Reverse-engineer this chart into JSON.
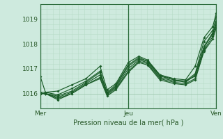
{
  "title": "",
  "xlabel": "Pression niveau de la mer( hPa )",
  "bg_color": "#ceeade",
  "line_color": "#1a5c28",
  "grid_major_color": "#a0c8b0",
  "grid_minor_color": "#b8dcc8",
  "axis_color": "#2a6b3a",
  "text_color": "#2a5a2a",
  "ylim": [
    1015.4,
    1019.6
  ],
  "yticks": [
    1016,
    1017,
    1018,
    1019
  ],
  "xlim": [
    0.0,
    2.0
  ],
  "x_labels": [
    0.0,
    1.0,
    2.0
  ],
  "x_label_names": [
    "Mer",
    "Jeu",
    "Ven"
  ],
  "series": [
    [
      0.0,
      1016.7,
      0.06,
      1016.05,
      0.2,
      1016.1,
      0.36,
      1016.35,
      0.52,
      1016.6,
      0.68,
      1017.1,
      0.76,
      1016.15,
      0.86,
      1016.4,
      1.0,
      1017.25,
      1.12,
      1017.5,
      1.22,
      1017.35,
      1.36,
      1016.75,
      1.52,
      1016.6,
      1.65,
      1016.55,
      1.76,
      1017.1,
      1.86,
      1018.25,
      1.96,
      1018.7,
      2.0,
      1019.25
    ],
    [
      0.0,
      1016.05,
      0.06,
      1016.05,
      0.2,
      1015.95,
      0.36,
      1016.2,
      0.52,
      1016.5,
      0.68,
      1016.9,
      0.76,
      1016.05,
      0.86,
      1016.35,
      1.0,
      1017.15,
      1.12,
      1017.45,
      1.22,
      1017.3,
      1.36,
      1016.7,
      1.52,
      1016.55,
      1.65,
      1016.5,
      1.76,
      1016.8,
      1.86,
      1018.1,
      1.96,
      1018.55,
      2.0,
      1019.1
    ],
    [
      0.0,
      1016.0,
      0.06,
      1016.0,
      0.2,
      1015.9,
      0.36,
      1016.1,
      0.52,
      1016.45,
      0.68,
      1016.85,
      0.76,
      1016.0,
      0.86,
      1016.3,
      1.0,
      1017.1,
      1.12,
      1017.4,
      1.22,
      1017.3,
      1.36,
      1016.75,
      1.52,
      1016.55,
      1.65,
      1016.45,
      1.76,
      1016.75,
      1.86,
      1017.9,
      1.96,
      1018.45,
      2.0,
      1018.9
    ],
    [
      0.0,
      1016.0,
      0.06,
      1016.0,
      0.2,
      1015.85,
      0.36,
      1016.05,
      0.52,
      1016.4,
      0.68,
      1016.75,
      0.76,
      1016.0,
      0.86,
      1016.25,
      1.0,
      1017.0,
      1.12,
      1017.35,
      1.22,
      1017.25,
      1.36,
      1016.65,
      1.52,
      1016.5,
      1.65,
      1016.5,
      1.76,
      1016.7,
      1.86,
      1017.85,
      1.96,
      1018.4,
      2.0,
      1018.85
    ],
    [
      0.0,
      1016.0,
      0.06,
      1016.0,
      0.2,
      1015.8,
      0.36,
      1016.0,
      0.52,
      1016.35,
      0.68,
      1016.65,
      0.76,
      1015.95,
      0.86,
      1016.2,
      1.0,
      1016.9,
      1.12,
      1017.3,
      1.22,
      1017.2,
      1.36,
      1016.6,
      1.52,
      1016.45,
      1.65,
      1016.4,
      1.76,
      1016.6,
      1.86,
      1017.75,
      1.96,
      1018.3,
      2.0,
      1018.75
    ],
    [
      0.0,
      1016.0,
      0.06,
      1016.0,
      0.2,
      1015.75,
      0.36,
      1016.0,
      0.52,
      1016.35,
      0.68,
      1016.6,
      0.76,
      1015.9,
      0.86,
      1016.15,
      1.0,
      1016.85,
      1.12,
      1017.25,
      1.22,
      1017.15,
      1.36,
      1016.55,
      1.52,
      1016.4,
      1.65,
      1016.35,
      1.76,
      1016.55,
      1.86,
      1017.7,
      1.96,
      1018.2,
      2.0,
      1018.65
    ]
  ]
}
